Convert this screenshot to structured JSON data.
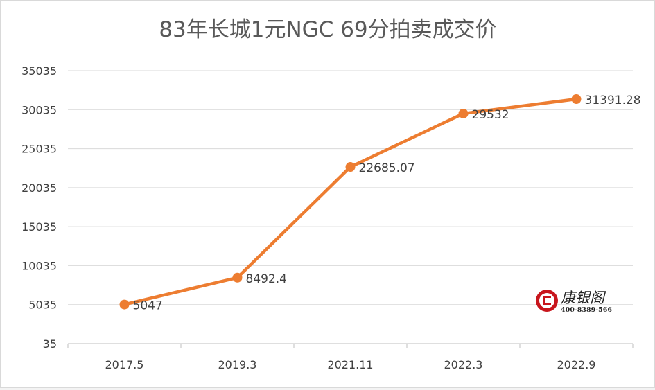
{
  "chart_data": {
    "type": "line",
    "title": "83年长城1元NGC 69分拍卖成交价",
    "categories": [
      "2017.5",
      "2019.3",
      "2021.11",
      "2022.3",
      "2022.9"
    ],
    "values": [
      5047,
      8492.4,
      22685.07,
      29532,
      31391.28
    ],
    "data_labels": [
      "5047",
      "8492.4",
      "22685.07",
      "29532",
      "31391.28"
    ],
    "y_ticks": [
      35,
      5035,
      10035,
      15035,
      20035,
      25035,
      30035,
      35035
    ],
    "y_tick_labels": [
      "35",
      "5035",
      "10035",
      "15035",
      "20035",
      "25035",
      "30035",
      "35035"
    ],
    "ylim": [
      35,
      35035
    ],
    "grid": true,
    "legend": "none",
    "line_color": "#ed7d31",
    "gridline_color": "#d9d9d9"
  },
  "watermark": {
    "name": "康银阁",
    "phone": "400-8389-566",
    "logo_color": "#c8161d"
  }
}
